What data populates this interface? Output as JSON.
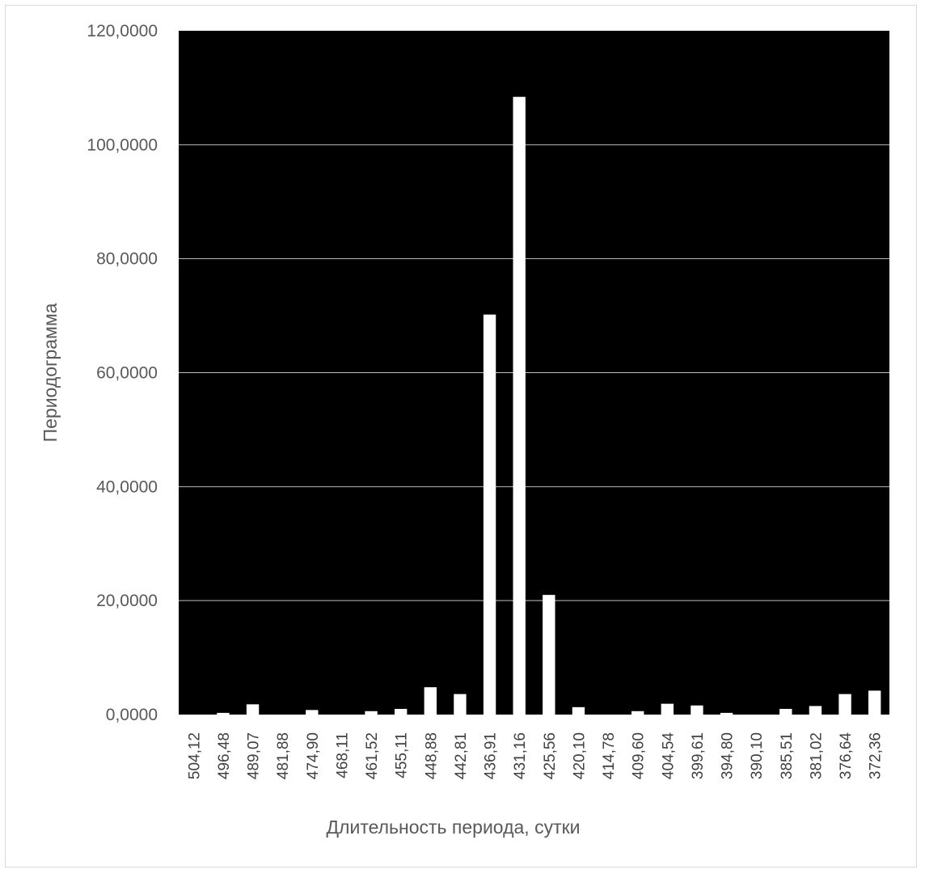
{
  "chart_data": {
    "type": "bar",
    "categories": [
      "504,12",
      "496,48",
      "489,07",
      "481,88",
      "474,90",
      "468,11",
      "461,52",
      "455,11",
      "448,88",
      "442,81",
      "436,91",
      "431,16",
      "425,56",
      "420,10",
      "414,78",
      "409,60",
      "404,54",
      "399,61",
      "394,80",
      "390,10",
      "385,51",
      "381,02",
      "376,64",
      "372,36"
    ],
    "values": [
      0.0,
      0.3,
      1.8,
      0.0,
      0.8,
      0.0,
      0.6,
      1.0,
      4.8,
      3.6,
      70.2,
      108.4,
      21.0,
      1.3,
      0.0,
      0.6,
      1.9,
      1.6,
      0.3,
      0.0,
      1.0,
      1.5,
      3.6,
      4.2
    ],
    "title": "",
    "xlabel": "Длительность периода, сутки",
    "ylabel": "Периодограмма",
    "ylim": [
      0,
      120
    ],
    "yticks": [
      "0,0000",
      "20,0000",
      "40,0000",
      "60,0000",
      "80,0000",
      "100,0000",
      "120,0000"
    ],
    "grid": true,
    "legend": "none",
    "colors": {
      "plot_background": "#000000",
      "bar_fill": "#ffffff",
      "gridline": "#bfbfbf",
      "tick_label": "#595959"
    }
  }
}
